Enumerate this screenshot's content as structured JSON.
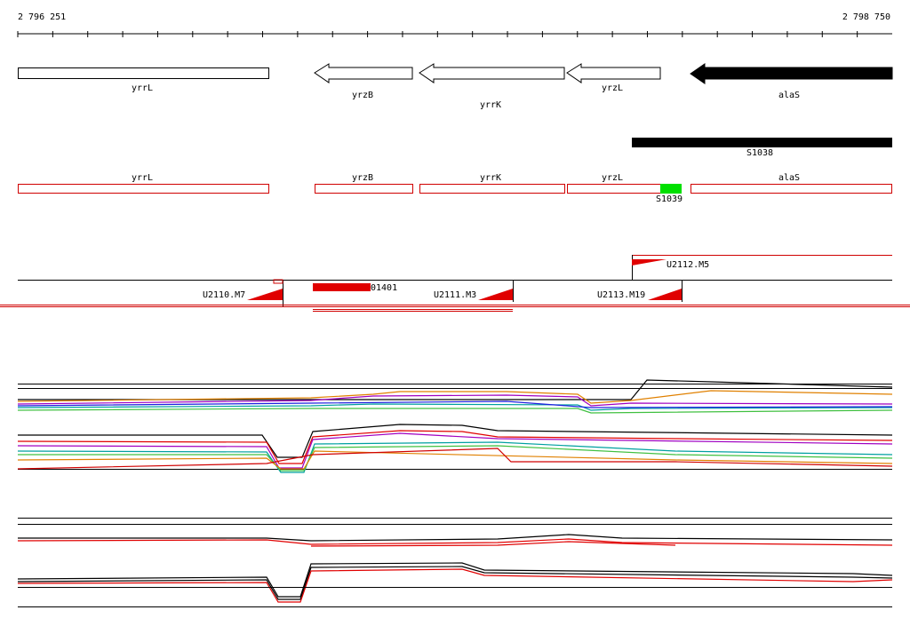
{
  "ruler": {
    "start": "2 796 251",
    "end": "2 798 750"
  },
  "genes": [
    {
      "label": "yrrL"
    },
    {
      "label": "yrzB"
    },
    {
      "label": "yrrK"
    },
    {
      "label": "yrzL"
    },
    {
      "label": "alaS"
    }
  ],
  "segments": [
    {
      "label": "S1038"
    },
    {
      "label": "S1039"
    }
  ],
  "annotations": [
    {
      "label": "yrrL"
    },
    {
      "label": "yrzB"
    },
    {
      "label": "yrrK"
    },
    {
      "label": "yrzL"
    },
    {
      "label": "alaS"
    }
  ],
  "transcripts": [
    {
      "label": "U2112.M5"
    },
    {
      "label": "U2110.M7"
    },
    {
      "label": "01401"
    },
    {
      "label": "U2111.M3"
    },
    {
      "label": "U2113.M19"
    }
  ]
}
